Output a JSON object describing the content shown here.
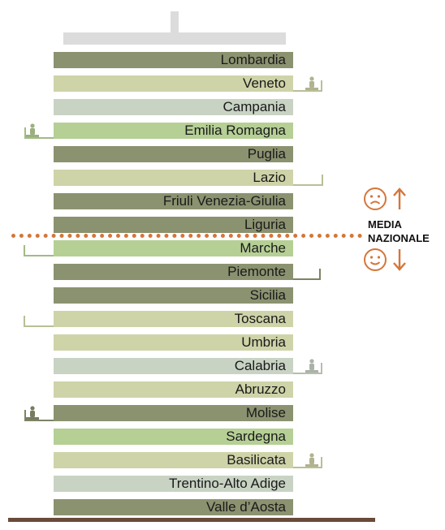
{
  "regions": [
    {
      "name": "Lombardia",
      "color": "#8b9270",
      "ledge": null,
      "person": null
    },
    {
      "name": "Veneto",
      "color": "#cfd3a8",
      "ledge": {
        "side": "right",
        "length": "short"
      },
      "person": "right"
    },
    {
      "name": "Campania",
      "color": "#c8d3c4",
      "ledge": null,
      "person": null
    },
    {
      "name": "Emilia Romagna",
      "color": "#b5cf95",
      "ledge": {
        "side": "left",
        "length": "short"
      },
      "person": "left"
    },
    {
      "name": "Puglia",
      "color": "#8b9270",
      "ledge": null,
      "person": null
    },
    {
      "name": "Lazio",
      "color": "#cfd3a8",
      "ledge": {
        "side": "right",
        "length": "medium"
      },
      "person": null
    },
    {
      "name": "Friuli Venezia-Giulia",
      "color": "#8b9270",
      "ledge": null,
      "person": null
    },
    {
      "name": "Liguria",
      "color": "#8b9270",
      "ledge": null,
      "person": null
    },
    {
      "name": "Marche",
      "color": "#b5cf95",
      "ledge": {
        "side": "left",
        "length": "medium"
      },
      "person": null
    },
    {
      "name": "Piemonte",
      "color": "#8b9270",
      "ledge": {
        "side": "right",
        "length": "long"
      },
      "person": null
    },
    {
      "name": "Sicilia",
      "color": "#8b9270",
      "ledge": null,
      "person": null
    },
    {
      "name": "Toscana",
      "color": "#cfd3a8",
      "ledge": {
        "side": "left",
        "length": "medium"
      },
      "person": null
    },
    {
      "name": "Umbria",
      "color": "#cfd3a8",
      "ledge": null,
      "person": null
    },
    {
      "name": "Calabria",
      "color": "#c8d3c4",
      "ledge": {
        "side": "right",
        "length": "short"
      },
      "person": "right"
    },
    {
      "name": "Abruzzo",
      "color": "#cfd3a8",
      "ledge": null,
      "person": null
    },
    {
      "name": "Molise",
      "color": "#8b9270",
      "ledge": {
        "side": "left",
        "length": "short"
      },
      "person": "left"
    },
    {
      "name": "Sardegna",
      "color": "#b5cf95",
      "ledge": null,
      "person": null
    },
    {
      "name": "Basilicata",
      "color": "#cfd3a8",
      "ledge": {
        "side": "right",
        "length": "short"
      },
      "person": "right"
    },
    {
      "name": "Trentino-Alto Adige",
      "color": "#c8d3c4",
      "ledge": null,
      "person": null
    },
    {
      "name": "Valle d’Aosta",
      "color": "#8b9270",
      "ledge": null,
      "person": null
    }
  ],
  "legend": {
    "line1": "MEDIA",
    "line2": "NAZIONALE",
    "above_icon": "sad-face-icon",
    "below_icon": "happy-face-icon",
    "accent_color": "#d4763a"
  },
  "colors": {
    "roof": "#dcdcdc",
    "ground": "#6b4a3a",
    "average_line": "#d4763a"
  }
}
